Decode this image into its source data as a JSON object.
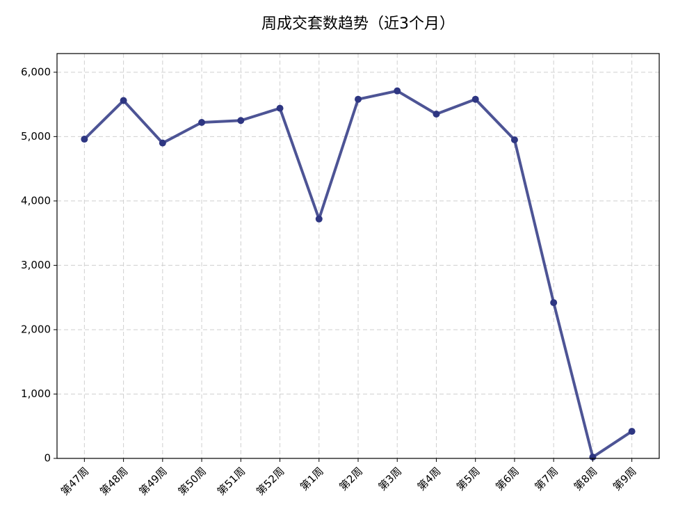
{
  "chart_data": {
    "type": "line",
    "title": "周成交套数趋势（近3个月）",
    "categories": [
      "第47周",
      "第48周",
      "第49周",
      "第50周",
      "第51周",
      "第52周",
      "第1周",
      "第2周",
      "第3周",
      "第4周",
      "第5周",
      "第6周",
      "第7周",
      "第8周",
      "第9周"
    ],
    "values": [
      4960,
      5560,
      4900,
      5220,
      5250,
      5440,
      3720,
      5580,
      5710,
      5350,
      5580,
      4950,
      2420,
      20,
      420
    ],
    "color": "#2e3682",
    "ylim": [
      0,
      6290
    ],
    "yticks": [
      0,
      {
        "value": 1000,
        "label": "1,000"
      },
      {
        "value": 2000,
        "label": "2,000"
      },
      {
        "value": 3000,
        "label": "3,000"
      },
      {
        "value": 4000,
        "label": "4,000"
      },
      {
        "value": 5000,
        "label": "5,000"
      },
      {
        "value": 6000,
        "label": "6,000"
      }
    ],
    "grid": true
  }
}
